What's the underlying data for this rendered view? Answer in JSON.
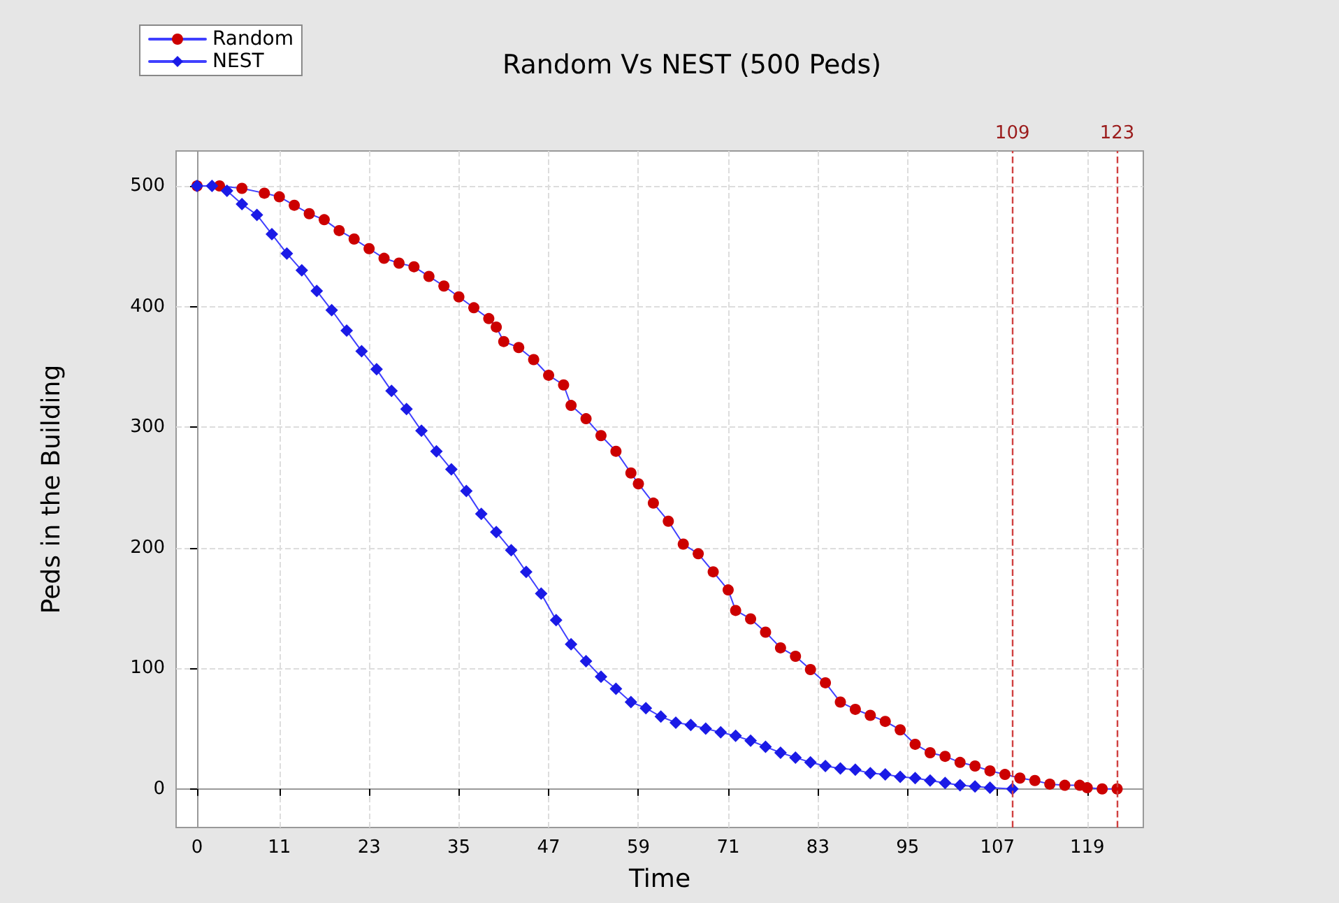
{
  "chart_data": {
    "type": "line",
    "title": "Random Vs NEST (500 Peds)",
    "xlabel": "Time",
    "ylabel": "Peds in the Building",
    "xlim": [
      -2.8,
      126.5
    ],
    "ylim": [
      -32,
      529
    ],
    "xticks": [
      0,
      11,
      23,
      35,
      47,
      59,
      71,
      83,
      95,
      107,
      119
    ],
    "yticks": [
      0,
      100,
      200,
      300,
      400,
      500
    ],
    "grid": true,
    "legend": "top left",
    "line_style": "solid",
    "series": [
      {
        "name": "Random",
        "color": "#cc0000",
        "marker": "circle",
        "x": [
          0,
          3,
          6,
          9,
          11,
          13,
          15,
          17,
          19,
          21,
          23,
          25,
          27,
          29,
          31,
          33,
          35,
          37,
          39,
          40,
          41,
          43,
          45,
          47,
          49,
          50,
          52,
          54,
          56,
          58,
          59,
          61,
          63,
          65,
          67,
          69,
          71,
          72,
          74,
          76,
          78,
          80,
          82,
          84,
          86,
          88,
          90,
          92,
          94,
          96,
          98,
          100,
          102,
          104,
          106,
          108,
          110,
          112,
          114,
          116,
          118,
          119,
          121,
          123
        ],
        "values": [
          500,
          500,
          498,
          494,
          491,
          484,
          477,
          472,
          463,
          456,
          448,
          440,
          436,
          433,
          425,
          417,
          408,
          399,
          390,
          383,
          371,
          366,
          356,
          343,
          335,
          318,
          307,
          293,
          280,
          262,
          253,
          237,
          222,
          203,
          195,
          180,
          165,
          148,
          141,
          130,
          117,
          110,
          99,
          88,
          72,
          66,
          61,
          56,
          49,
          37,
          30,
          27,
          22,
          19,
          15,
          12,
          9,
          7,
          4,
          3,
          3,
          1,
          0,
          0
        ]
      },
      {
        "name": "NEST",
        "color": "#1a1ae6",
        "marker": "diamond",
        "x": [
          0,
          2,
          4,
          6,
          8,
          10,
          12,
          14,
          16,
          18,
          20,
          22,
          24,
          26,
          28,
          30,
          32,
          34,
          36,
          38,
          40,
          42,
          44,
          46,
          48,
          50,
          52,
          54,
          56,
          58,
          60,
          62,
          64,
          66,
          68,
          70,
          72,
          74,
          76,
          78,
          80,
          82,
          84,
          86,
          88,
          90,
          92,
          94,
          96,
          98,
          100,
          102,
          104,
          106,
          109
        ],
        "values": [
          500,
          500,
          496,
          485,
          476,
          460,
          444,
          430,
          413,
          397,
          380,
          363,
          348,
          330,
          315,
          297,
          280,
          265,
          247,
          228,
          213,
          198,
          180,
          162,
          140,
          120,
          106,
          93,
          83,
          72,
          67,
          60,
          55,
          53,
          50,
          47,
          44,
          40,
          35,
          30,
          26,
          22,
          19,
          17,
          16,
          13,
          12,
          10,
          9,
          7,
          5,
          3,
          2,
          1,
          0
        ]
      }
    ],
    "ref_lines": [
      {
        "axis": "x",
        "value": 109,
        "label": "109",
        "color": "#d04040",
        "line_style": "dashed"
      },
      {
        "axis": "x",
        "value": 123,
        "label": "123",
        "color": "#d04040",
        "line_style": "dashed"
      }
    ]
  }
}
